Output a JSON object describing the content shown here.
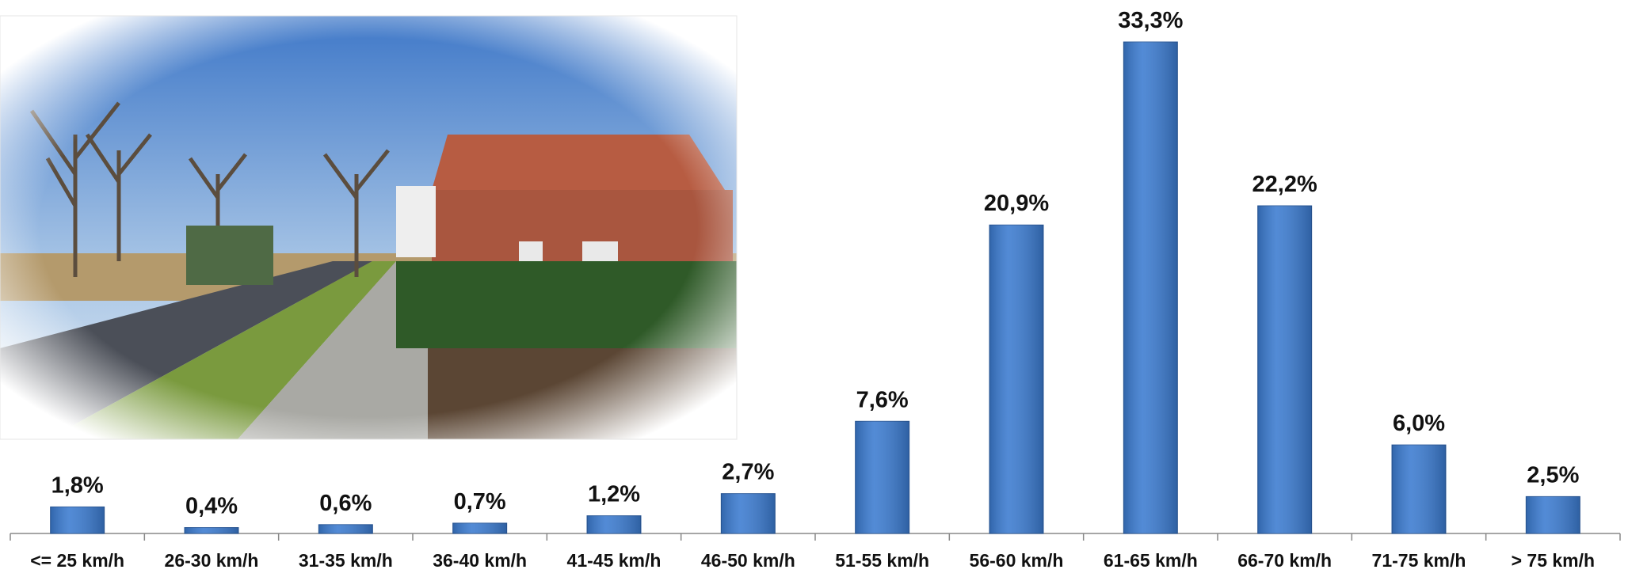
{
  "chart_data": {
    "type": "bar",
    "categories": [
      "<= 25 km/h",
      "26-30 km/h",
      "31-35 km/h",
      "36-40 km/h",
      "41-45 km/h",
      "46-50 km/h",
      "51-55 km/h",
      "56-60 km/h",
      "61-65 km/h",
      "66-70 km/h",
      "71-75 km/h",
      "> 75 km/h"
    ],
    "values": [
      1.8,
      0.4,
      0.6,
      0.7,
      1.2,
      2.7,
      7.6,
      20.9,
      33.3,
      22.2,
      6.0,
      2.5
    ],
    "value_labels": [
      "1,8%",
      "0,4%",
      "0,6%",
      "0,7%",
      "1,2%",
      "2,7%",
      "7,6%",
      "20,9%",
      "33,3%",
      "22,2%",
      "6,0%",
      "2,5%"
    ],
    "color": "#3b7bd0"
  }
}
